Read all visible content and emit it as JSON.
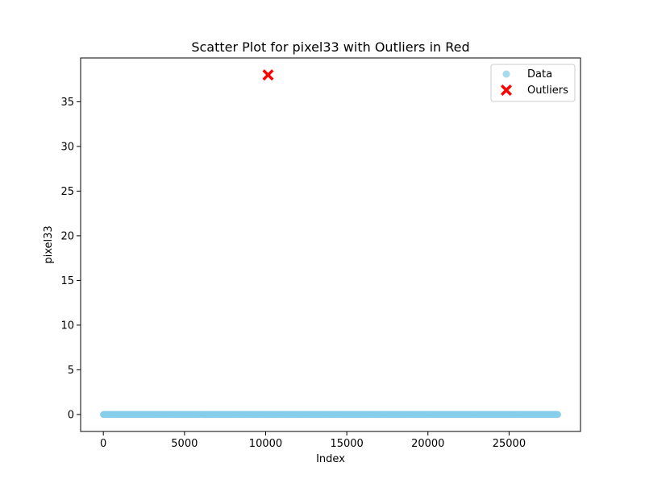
{
  "chart_data": {
    "type": "scatter",
    "title": "Scatter Plot for pixel33 with Outliers in Red",
    "xlabel": "Index",
    "ylabel": "pixel33",
    "xlim": [
      -1400,
      29400
    ],
    "ylim": [
      -1.9,
      39.9
    ],
    "xticks": [
      0,
      5000,
      10000,
      15000,
      20000,
      25000
    ],
    "yticks": [
      0,
      5,
      10,
      15,
      20,
      25,
      30,
      35
    ],
    "grid": false,
    "legend_position": "top-right",
    "series": [
      {
        "name": "Data",
        "marker": "circle",
        "color": "#87ceeb",
        "x_range": [
          0,
          27999
        ],
        "y_constant": 0,
        "count": 28000
      },
      {
        "name": "Outliers",
        "marker": "X",
        "color": "#ff0000",
        "points": [
          {
            "x": 10150,
            "y": 38
          }
        ]
      }
    ]
  }
}
